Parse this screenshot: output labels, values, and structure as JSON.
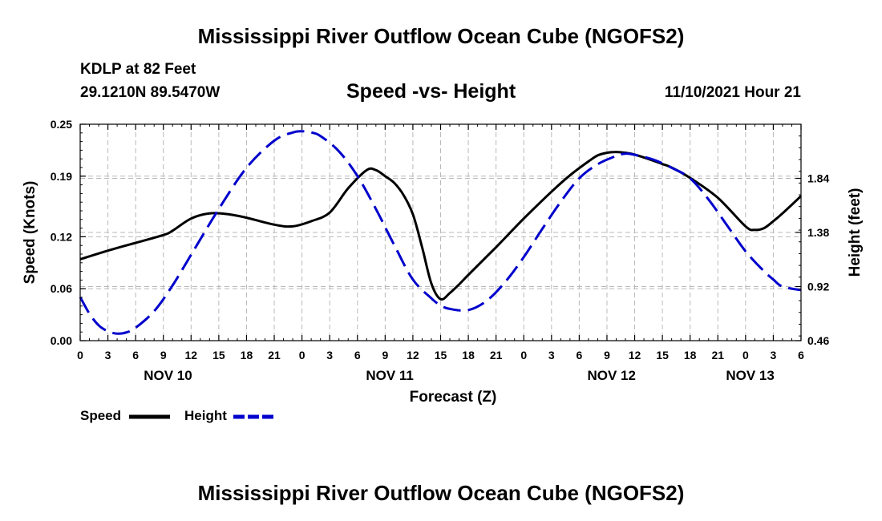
{
  "header": {
    "title": "Mississippi River Outflow Ocean Cube (NGOFS2)",
    "station": "KDLP at 82 Feet",
    "coords": "29.1210N  89.5470W",
    "subtitle": "Speed -vs- Height",
    "datetime": "11/10/2021 Hour 21"
  },
  "footer": {
    "title": "Mississippi River Outflow Ocean Cube (NGOFS2)"
  },
  "legend": {
    "speed_label": "Speed",
    "height_label": "Height"
  },
  "chart_data": {
    "type": "line",
    "xlabel": "Forecast (Z)",
    "ylabel": "Speed (Knots)",
    "y2label": "Height (feet)",
    "xlim": [
      0,
      78
    ],
    "ylim": [
      0,
      0.25
    ],
    "y2lim": [
      0.46,
      2.3
    ],
    "grid": true,
    "x_tick_hours": [
      0,
      3,
      6,
      9,
      12,
      15,
      18,
      21,
      24,
      27,
      30,
      33,
      36,
      39,
      42,
      45,
      48,
      51,
      54,
      57,
      60,
      63,
      66,
      69,
      72,
      75,
      78
    ],
    "x_tick_labels": [
      "0",
      "3",
      "6",
      "9",
      "12",
      "15",
      "18",
      "21",
      "0",
      "3",
      "6",
      "9",
      "12",
      "15",
      "18",
      "21",
      "0",
      "3",
      "6",
      "9",
      "12",
      "15",
      "18",
      "21",
      "0",
      "3",
      "6"
    ],
    "day_labels": [
      {
        "label": "NOV 10",
        "hour": 9.5
      },
      {
        "label": "NOV 11",
        "hour": 33.5
      },
      {
        "label": "NOV 12",
        "hour": 57.5
      },
      {
        "label": "NOV 13",
        "hour": 72.5
      }
    ],
    "y_ticks": [
      0.0,
      0.06,
      0.12,
      0.19,
      0.25
    ],
    "y_tick_labels": [
      "0.00",
      "0.06",
      "0.12",
      "0.19",
      "0.25"
    ],
    "y2_ticks": [
      0.46,
      0.92,
      1.38,
      1.84
    ],
    "y2_tick_labels": [
      "0.46",
      "0.92",
      "1.38",
      "1.84"
    ],
    "series": [
      {
        "name": "Speed",
        "axis": "left",
        "color": "#000000",
        "dash": "solid",
        "x": [
          0,
          3,
          6,
          9,
          10,
          12,
          14,
          16,
          18,
          21,
          23,
          25,
          27,
          29,
          31,
          32,
          33,
          34,
          35,
          36,
          37,
          38,
          39,
          40,
          41,
          42,
          45,
          48,
          51,
          53,
          55,
          56,
          57,
          58,
          59,
          60,
          62,
          63,
          64,
          66,
          69,
          72,
          73,
          74,
          75,
          76,
          78
        ],
        "y": [
          0.094,
          0.104,
          0.113,
          0.122,
          0.127,
          0.141,
          0.147,
          0.146,
          0.142,
          0.134,
          0.132,
          0.138,
          0.148,
          0.176,
          0.197,
          0.197,
          0.19,
          0.182,
          0.168,
          0.146,
          0.108,
          0.066,
          0.048,
          0.055,
          0.065,
          0.076,
          0.108,
          0.141,
          0.172,
          0.191,
          0.207,
          0.214,
          0.217,
          0.218,
          0.217,
          0.215,
          0.208,
          0.204,
          0.2,
          0.188,
          0.165,
          0.132,
          0.128,
          0.13,
          0.138,
          0.147,
          0.167
        ]
      },
      {
        "name": "Height",
        "axis": "right",
        "color": "#0000cc",
        "dash": "dashed",
        "x": [
          0,
          1,
          2,
          3,
          4,
          5,
          6,
          8,
          10,
          12,
          15,
          18,
          21,
          23,
          24,
          25,
          26,
          28,
          30,
          32,
          34,
          36,
          38,
          39,
          40,
          42,
          44,
          46,
          48,
          50,
          52,
          54,
          56,
          58,
          59,
          60,
          62,
          64,
          66,
          68,
          70,
          72,
          74,
          75,
          76,
          78
        ],
        "y": [
          0.83,
          0.69,
          0.59,
          0.54,
          0.52,
          0.53,
          0.57,
          0.71,
          0.93,
          1.19,
          1.58,
          1.93,
          2.16,
          2.23,
          2.24,
          2.23,
          2.2,
          2.07,
          1.86,
          1.58,
          1.27,
          0.98,
          0.82,
          0.76,
          0.73,
          0.72,
          0.8,
          0.96,
          1.17,
          1.41,
          1.64,
          1.84,
          1.96,
          2.03,
          2.05,
          2.04,
          2.0,
          1.93,
          1.84,
          1.66,
          1.44,
          1.22,
          1.05,
          0.98,
          0.92,
          0.89
        ]
      }
    ]
  }
}
